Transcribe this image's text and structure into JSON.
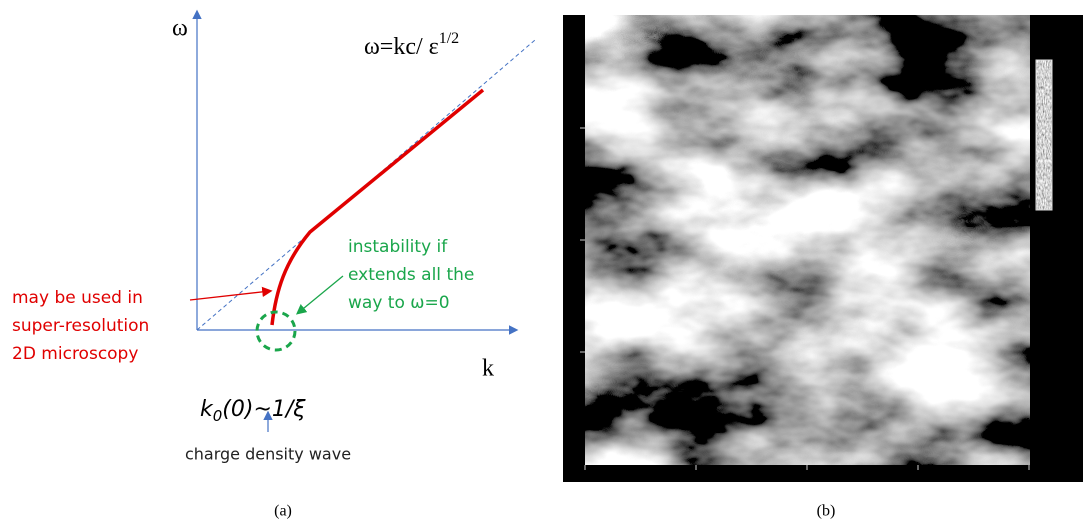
{
  "panel_a": {
    "y_axis_label": "ω",
    "x_axis_label": "k",
    "formula": {
      "main": "ω=kc/ ε",
      "sup": "1/2"
    },
    "green_note": [
      "instability if",
      "extends all the",
      "way to ω=0"
    ],
    "red_note": [
      "may be used in",
      "super-resolution",
      "2D microscopy"
    ],
    "k0_label": {
      "k": "k",
      "sub": "0",
      "rest": "(0)~1/ξ"
    },
    "bottom_note": "charge density wave",
    "caption": "(a)"
  },
  "panel_b": {
    "caption": "(b)"
  }
}
